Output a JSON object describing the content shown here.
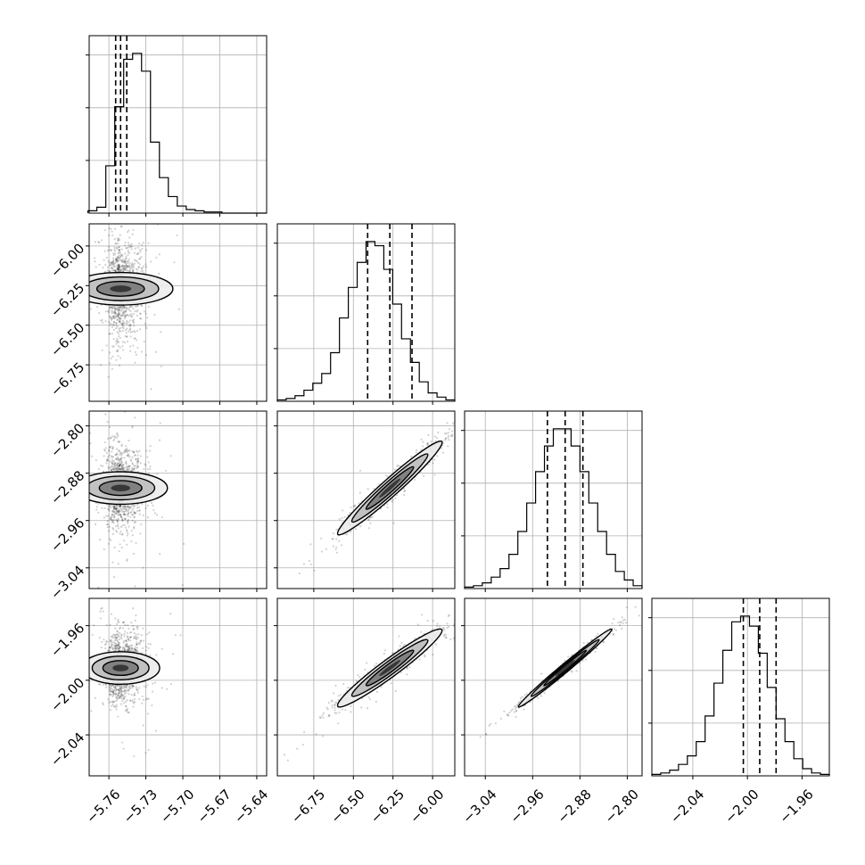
{
  "chart_data": {
    "type": "corner",
    "parameters": [
      {
        "ticks": [
          -5.76,
          -5.73,
          -5.7,
          -5.67,
          -5.64
        ],
        "tick_labels": [
          "−5.76",
          "−5.73",
          "−5.70",
          "−5.67",
          "−5.64"
        ],
        "range": [
          -5.776,
          -5.632
        ],
        "q16": -5.7545,
        "median": -5.7505,
        "q84": -5.7455
      },
      {
        "ticks": [
          -6.75,
          -6.5,
          -6.25,
          -6.0
        ],
        "tick_labels": [
          "−6.75",
          "−6.50",
          "−6.25",
          "−6.00"
        ],
        "range": [
          -6.98,
          -5.86
        ],
        "q16": -6.41,
        "median": -6.27,
        "q84": -6.13
      },
      {
        "ticks": [
          -3.04,
          -2.96,
          -2.88,
          -2.8
        ],
        "tick_labels": [
          "−3.04",
          "−2.96",
          "−2.88",
          "−2.80"
        ],
        "range": [
          -3.075,
          -2.775
        ],
        "q16": -2.935,
        "median": -2.905,
        "q84": -2.875
      },
      {
        "ticks": [
          -2.04,
          -2.0,
          -1.96
        ],
        "tick_labels": [
          "−2.04",
          "−2.00",
          "−1.96"
        ],
        "range": [
          -2.07,
          -1.94
        ],
        "q16": -2.003,
        "median": -1.991,
        "q84": -1.979
      },
      {
        "note_is_layout": false
      }
    ],
    "histograms": [
      {
        "param": 0,
        "edges_from": -5.777,
        "edges_to": -5.632,
        "counts": [
          2,
          5,
          40,
          90,
          130,
          135,
          120,
          60,
          30,
          14,
          6,
          3,
          2,
          1,
          1,
          0,
          0,
          0,
          0,
          0
        ]
      },
      {
        "param": 1,
        "edges_from": -6.98,
        "edges_to": -5.86,
        "counts": [
          1,
          2,
          4,
          8,
          13,
          20,
          35,
          60,
          82,
          100,
          115,
          112,
          95,
          70,
          45,
          28,
          14,
          6,
          3,
          1
        ]
      },
      {
        "param": 2,
        "edges_from": -3.075,
        "edges_to": -2.775,
        "counts": [
          1,
          2,
          4,
          8,
          14,
          24,
          40,
          60,
          82,
          100,
          112,
          112,
          100,
          82,
          60,
          40,
          24,
          12,
          6,
          2
        ]
      },
      {
        "param": 3,
        "edges_from": -2.07,
        "edges_to": -1.94,
        "counts": [
          1,
          2,
          4,
          8,
          14,
          24,
          42,
          65,
          88,
          108,
          112,
          105,
          86,
          62,
          40,
          24,
          12,
          5,
          2,
          1
        ]
      }
    ],
    "pairs": [
      {
        "x": 0,
        "y": 1,
        "mean": [
          -5.7505,
          -6.27
        ],
        "sd": [
          0.006,
          0.15
        ],
        "rho": 0.0
      },
      {
        "x": 0,
        "y": 2,
        "mean": [
          -5.7505,
          -2.905
        ],
        "sd": [
          0.006,
          0.036
        ],
        "rho": 0.0
      },
      {
        "x": 0,
        "y": 3,
        "mean": [
          -5.7505,
          -1.991
        ],
        "sd": [
          0.006,
          0.013
        ],
        "rho": 0.0
      },
      {
        "x": 1,
        "y": 2,
        "mean": [
          -6.27,
          -2.905
        ],
        "sd": [
          0.15,
          0.036
        ],
        "rho": 0.97
      },
      {
        "x": 1,
        "y": 3,
        "mean": [
          -6.27,
          -1.991
        ],
        "sd": [
          0.15,
          0.013
        ],
        "rho": 0.96
      },
      {
        "x": 2,
        "y": 3,
        "mean": [
          -2.905,
          -1.991
        ],
        "sd": [
          0.036,
          0.013
        ],
        "rho": 0.99
      }
    ],
    "grid": true,
    "quantile_lines": "dashed"
  }
}
